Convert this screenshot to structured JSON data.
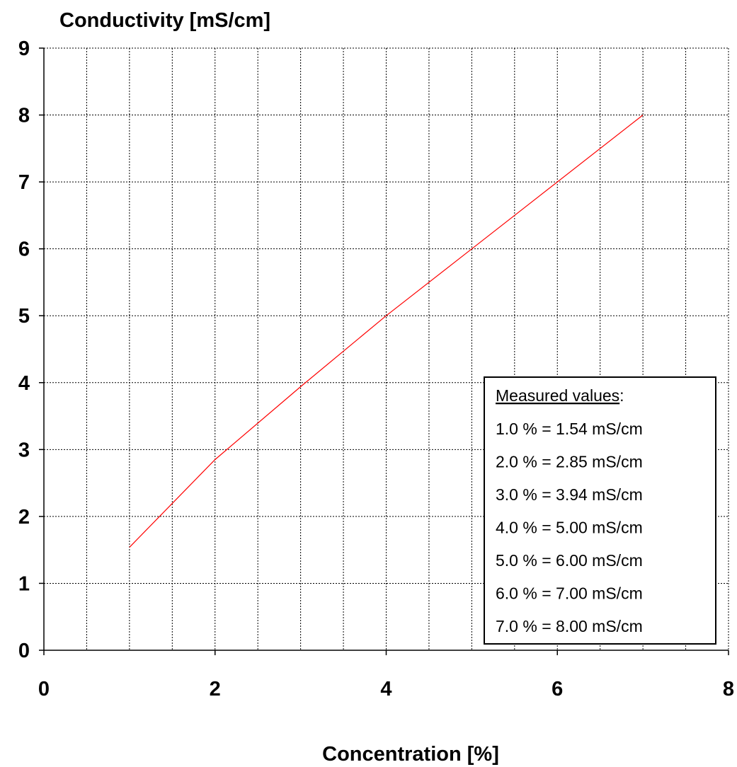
{
  "chart_data": {
    "type": "line",
    "ylabel": "Conductivity [mS/cm]",
    "xlabel": "Concentration [%]",
    "xlim": [
      0,
      8
    ],
    "ylim": [
      0,
      9
    ],
    "x_ticks": [
      0,
      2,
      4,
      6,
      8
    ],
    "y_ticks": [
      0,
      1,
      2,
      3,
      4,
      5,
      6,
      7,
      8,
      9
    ],
    "x_minor_step": 0.5,
    "grid": true,
    "grid_style": "dashed",
    "series": [
      {
        "color": "#ff0000",
        "x": [
          1.0,
          2.0,
          3.0,
          4.0,
          5.0,
          6.0,
          7.0
        ],
        "y": [
          1.54,
          2.85,
          3.94,
          5.0,
          6.0,
          7.0,
          8.0
        ]
      }
    ],
    "legend": {
      "placement": "bottom-right",
      "title": "Measured values",
      "title_suffix": ":",
      "entries": [
        "1.0 % = 1.54 mS/cm",
        "2.0 % = 2.85 mS/cm",
        "3.0 % = 3.94 mS/cm",
        "4.0 % = 5.00 mS/cm",
        "5.0 % = 6.00 mS/cm",
        "6.0 % = 7.00 mS/cm",
        "7.0 % = 8.00 mS/cm"
      ]
    }
  }
}
